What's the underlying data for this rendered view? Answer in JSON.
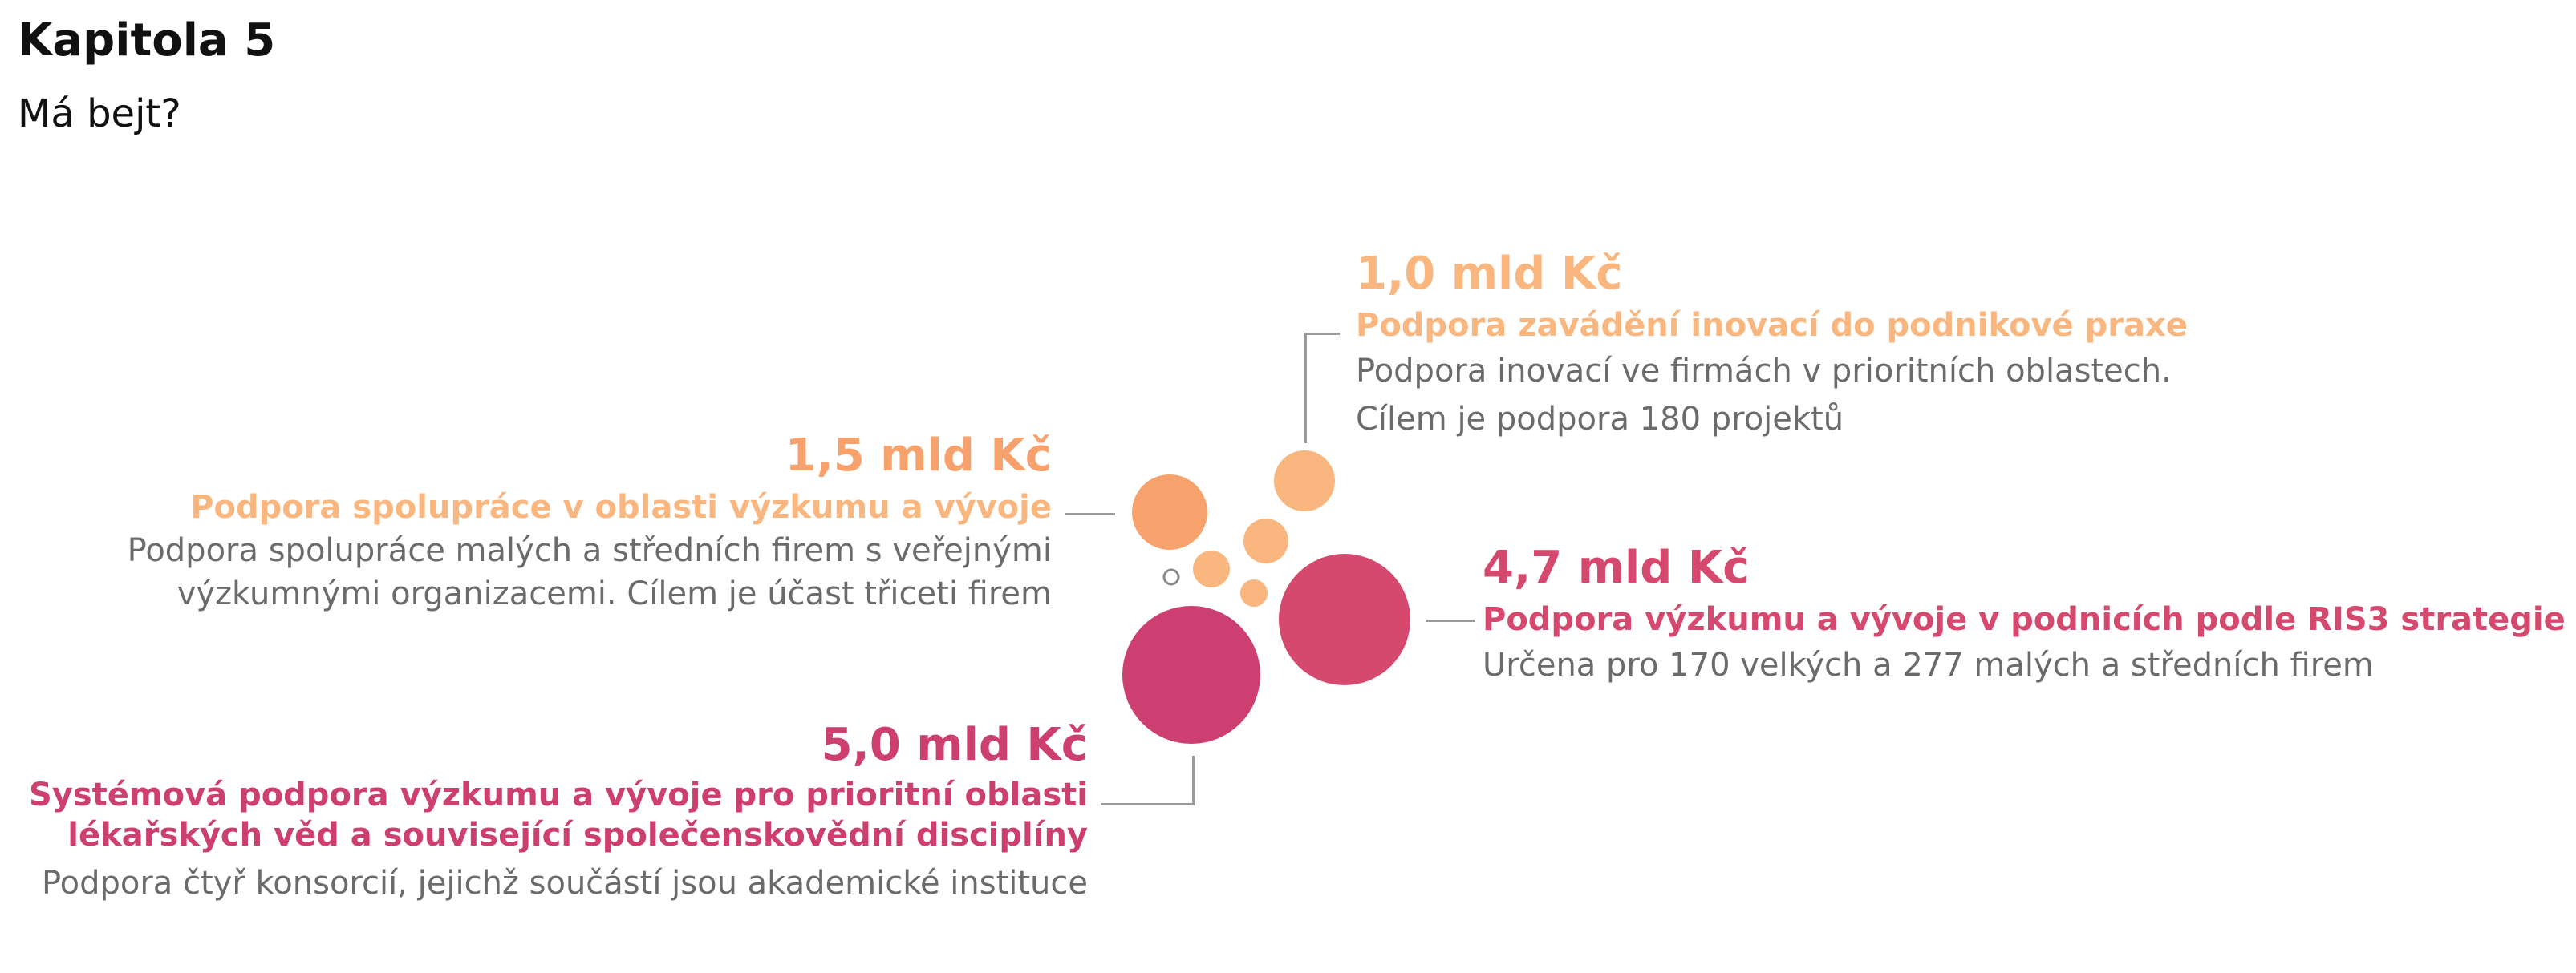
{
  "header": {
    "title": "Kapitola 5",
    "subtitle": "Má bejt?"
  },
  "colors": {
    "light_orange": "#f9b67f",
    "orange": "#f7a26d",
    "pink": "#d6496e",
    "magenta": "#cc3f70",
    "gray_text": "#6b6b6b"
  },
  "items": [
    {
      "amount": "1,0 mld Kč",
      "title": "Podpora zavádění inovací do podnikové praxe",
      "desc_lines": [
        "Podpora inovací ve firmách v prioritních oblastech.",
        "Cílem je podpora 180 projektů"
      ],
      "value_bn_czk": 1.0,
      "color": "#f9b67f"
    },
    {
      "amount": "1,5 mld Kč",
      "title": "Podpora spolupráce v oblasti výzkumu a vývoje",
      "desc_lines": [
        "Podpora spolupráce malých a středních firem s veřejnými",
        "výzkumnými organizacemi. Cílem je účast třiceti firem"
      ],
      "value_bn_czk": 1.5,
      "color": "#f7a26d"
    },
    {
      "amount": "4,7 mld Kč",
      "title": "Podpora výzkumu a vývoje v podnicích podle RIS3 strategie",
      "desc_lines": [
        "Určena pro 170 velkých a 277 malých a středních firem"
      ],
      "value_bn_czk": 4.7,
      "color": "#d6496e"
    },
    {
      "amount": "5,0 mld Kč",
      "title_lines": [
        "Systémová podpora výzkumu a vývoje pro prioritní oblasti",
        "lékařských věd a související společenskovědní disciplíny"
      ],
      "desc_lines": [
        "Podpora čtyř konsorcií, jejichž součástí jsou akademické instituce"
      ],
      "value_bn_czk": 5.0,
      "color": "#cc3f70"
    }
  ]
}
